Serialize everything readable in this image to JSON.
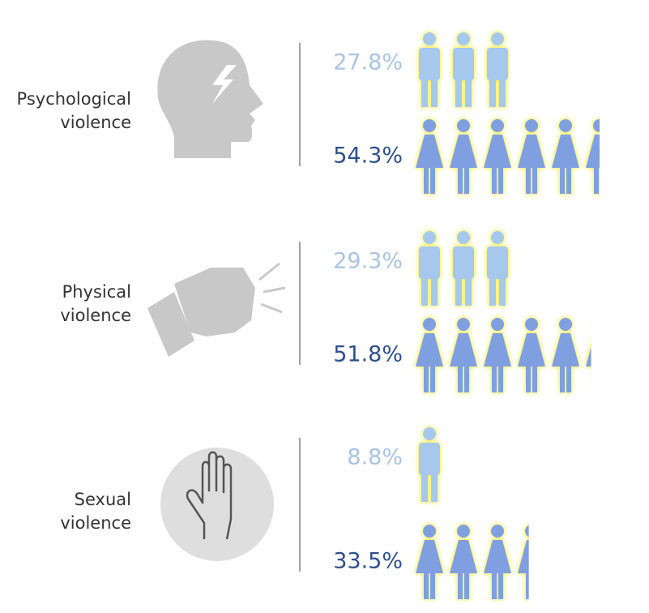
{
  "chart_data": {
    "type": "pictogram",
    "categories": [
      "Psychological violence",
      "Physical violence",
      "Sexual violence"
    ],
    "series": [
      {
        "color": "#a6c8ec",
        "values": [
          27.8,
          29.3,
          8.8
        ],
        "value_labels": [
          "27.8%",
          "29.3%",
          "8.8%"
        ]
      },
      {
        "color": "#7f9fe0",
        "values": [
          54.3,
          51.8,
          33.5
        ],
        "value_labels": [
          "54.3%",
          "51.8%",
          "33.5%"
        ]
      }
    ]
  }
}
